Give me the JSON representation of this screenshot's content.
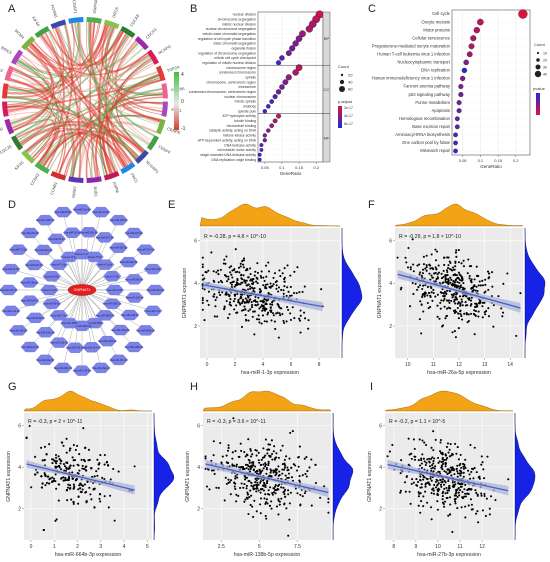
{
  "panel_letters": [
    "A",
    "B",
    "C",
    "D",
    "E",
    "F",
    "G",
    "H",
    "I"
  ],
  "chart_data": [
    {
      "panel": "A",
      "type": "other",
      "subtype": "chord",
      "left_genes": [
        "GNPNAT1",
        "ORC6",
        "CDCA8",
        "CDCA3",
        "NCAPG",
        "TOP2A",
        "KIF20A",
        "KIF11",
        "CENPE",
        "CENPF",
        "NUSAP1",
        "PRC1"
      ],
      "right_genes": [
        "ASPM",
        "BUB1",
        "RRM2",
        "CCNB1",
        "CCNA2",
        "KIF2C",
        "CDC20",
        "NDC80",
        "TTK",
        "CDK1",
        "TPX2",
        "BIRC5",
        "MCM4",
        "KIF4A",
        "FOXM1",
        "RACGAP1"
      ],
      "legend_scale": [
        "4",
        "0",
        "-1"
      ],
      "legend_colors": {
        "high": "#3fbf3f",
        "mid": "#e8e8e8",
        "low": "#d8382b"
      }
    },
    {
      "panel": "B",
      "type": "scatter",
      "subtype": "dotplot",
      "xlabel": "GeneRatio",
      "x_ticks": [
        0.05,
        0.1,
        0.15,
        0.2
      ],
      "xlim": [
        0.03,
        0.22
      ],
      "facets": [
        "BP",
        "CC",
        "MF"
      ],
      "terms": [
        {
          "label": "nuclear division",
          "x": 0.21,
          "facet": "BP",
          "count": 60,
          "p": 0.1
        },
        {
          "label": "chromosome segregation",
          "x": 0.2,
          "facet": "BP",
          "count": 58,
          "p": 0.2
        },
        {
          "label": "mitotic nuclear division",
          "x": 0.19,
          "facet": "BP",
          "count": 55,
          "p": 0.3
        },
        {
          "label": "nuclear chromosome segregation",
          "x": 0.18,
          "facet": "BP",
          "count": 52,
          "p": 0.3
        },
        {
          "label": "mitotic sister chromatid segregation",
          "x": 0.16,
          "facet": "BP",
          "count": 46,
          "p": 0.4
        },
        {
          "label": "regulation of cell cycle phase transition",
          "x": 0.15,
          "facet": "BP",
          "count": 44,
          "p": 0.5
        },
        {
          "label": "sister chromatid segregation",
          "x": 0.14,
          "facet": "BP",
          "count": 40,
          "p": 0.5
        },
        {
          "label": "organelle fission",
          "x": 0.13,
          "facet": "BP",
          "count": 38,
          "p": 0.6
        },
        {
          "label": "regulation of chromosome segregation",
          "x": 0.12,
          "facet": "BP",
          "count": 34,
          "p": 0.6
        },
        {
          "label": "mitotic cell cycle checkpoint",
          "x": 0.1,
          "facet": "BP",
          "count": 30,
          "p": 0.7
        },
        {
          "label": "regulation of mitotic nuclear division",
          "x": 0.09,
          "facet": "BP",
          "count": 26,
          "p": 0.8
        },
        {
          "label": "chromosome region",
          "x": 0.15,
          "facet": "CC",
          "count": 45,
          "p": 0.2
        },
        {
          "label": "condensed chromosome",
          "x": 0.14,
          "facet": "CC",
          "count": 42,
          "p": 0.3
        },
        {
          "label": "spindle",
          "x": 0.12,
          "facet": "CC",
          "count": 38,
          "p": 0.4
        },
        {
          "label": "chromosome, centromeric region",
          "x": 0.11,
          "facet": "CC",
          "count": 34,
          "p": 0.5
        },
        {
          "label": "kinetochore",
          "x": 0.1,
          "facet": "CC",
          "count": 30,
          "p": 0.6
        },
        {
          "label": "condensed chromosome, centromeric region",
          "x": 0.09,
          "facet": "CC",
          "count": 28,
          "p": 0.6
        },
        {
          "label": "nuclear chromosome",
          "x": 0.08,
          "facet": "CC",
          "count": 24,
          "p": 0.7
        },
        {
          "label": "mitotic spindle",
          "x": 0.07,
          "facet": "CC",
          "count": 20,
          "p": 0.8
        },
        {
          "label": "midbody",
          "x": 0.06,
          "facet": "CC",
          "count": 18,
          "p": 0.8
        },
        {
          "label": "spindle pole",
          "x": 0.05,
          "facet": "CC",
          "count": 15,
          "p": 0.9
        },
        {
          "label": "ATP hydrolysis activity",
          "x": 0.09,
          "facet": "MF",
          "count": 25,
          "p": 0.2
        },
        {
          "label": "tubulin binding",
          "x": 0.08,
          "facet": "MF",
          "count": 22,
          "p": 0.3
        },
        {
          "label": "microtubule binding",
          "x": 0.07,
          "facet": "MF",
          "count": 20,
          "p": 0.4
        },
        {
          "label": "catalytic activity, acting on DNA",
          "x": 0.06,
          "facet": "MF",
          "count": 17,
          "p": 0.5
        },
        {
          "label": "histone kinase activity",
          "x": 0.05,
          "facet": "MF",
          "count": 14,
          "p": 0.5
        },
        {
          "label": "ATP-dependent activity, acting on DNA",
          "x": 0.05,
          "facet": "MF",
          "count": 13,
          "p": 0.6
        },
        {
          "label": "DNA helicase activity",
          "x": 0.04,
          "facet": "MF",
          "count": 11,
          "p": 0.7
        },
        {
          "label": "microtubule motor activity",
          "x": 0.04,
          "facet": "MF",
          "count": 10,
          "p": 0.7
        },
        {
          "label": "single-stranded DNA helicase activity",
          "x": 0.035,
          "facet": "MF",
          "count": 9,
          "p": 0.8
        },
        {
          "label": "DNA replication origin binding",
          "x": 0.035,
          "facet": "MF",
          "count": 8,
          "p": 0.9
        }
      ],
      "legend_count_title": "Count",
      "legend_count_values": [
        "20",
        "40",
        "60"
      ],
      "legend_p_title": "p.adjust",
      "legend_p_values": [
        "2e-17",
        "4e-17",
        "6e-17"
      ]
    },
    {
      "panel": "C",
      "type": "scatter",
      "subtype": "dotplot",
      "xlabel": "GeneRatio",
      "x_ticks": [
        0.05,
        0.1,
        0.15,
        0.2
      ],
      "xlim": [
        0.02,
        0.24
      ],
      "terms": [
        {
          "label": "Cell cycle",
          "x": 0.22,
          "count": 40,
          "p": 0.05
        },
        {
          "label": "Oocyte meiosis",
          "x": 0.1,
          "count": 20,
          "p": 0.2
        },
        {
          "label": "Motor proteins",
          "x": 0.09,
          "count": 18,
          "p": 0.25
        },
        {
          "label": "Cellular senescence",
          "x": 0.08,
          "count": 16,
          "p": 0.3
        },
        {
          "label": "Progesterone-mediated oocyte maturation",
          "x": 0.075,
          "count": 15,
          "p": 0.3
        },
        {
          "label": "Human T-cell leukemia virus 1 infection",
          "x": 0.07,
          "count": 14,
          "p": 0.35
        },
        {
          "label": "Nucleocytoplasmic transport",
          "x": 0.06,
          "count": 12,
          "p": 0.5
        },
        {
          "label": "DNA replication",
          "x": 0.055,
          "count": 11,
          "p": 0.9
        },
        {
          "label": "Human immunodeficiency virus 1 infection",
          "x": 0.05,
          "count": 10,
          "p": 0.5
        },
        {
          "label": "Fanconi anemia pathway",
          "x": 0.045,
          "count": 9,
          "p": 0.5
        },
        {
          "label": "p53 signaling pathway",
          "x": 0.045,
          "count": 9,
          "p": 0.6
        },
        {
          "label": "Purine metabolism",
          "x": 0.04,
          "count": 8,
          "p": 0.6
        },
        {
          "label": "Apoptosis",
          "x": 0.04,
          "count": 8,
          "p": 0.65
        },
        {
          "label": "Homologous recombination",
          "x": 0.035,
          "count": 7,
          "p": 0.7
        },
        {
          "label": "Base excision repair",
          "x": 0.035,
          "count": 7,
          "p": 0.7
        },
        {
          "label": "Aminoacyl-tRNA biosynthesis",
          "x": 0.03,
          "count": 6,
          "p": 0.75
        },
        {
          "label": "One carbon pool by folate",
          "x": 0.03,
          "count": 6,
          "p": 0.8
        },
        {
          "label": "Mismatch repair",
          "x": 0.03,
          "count": 6,
          "p": 0.85
        }
      ],
      "legend_count_title": "Count",
      "legend_count_values": [
        "10",
        "20",
        "30",
        "40"
      ],
      "legend_p_title": "pvalue"
    },
    {
      "panel": "D",
      "type": "other",
      "subtype": "network",
      "center": "GNPNAT1",
      "nodes": [
        "hsa-miR-26a-5p",
        "hsa-miR-1-3p",
        "hsa-miR-664b-3p",
        "hsa-miR-138b-5p",
        "hsa-miR-27b-3p",
        "hsa-miR-29a-3p",
        "hsa-miR-145-5p",
        "hsa-miR-200c-3p",
        "hsa-miR-34a-5p",
        "hsa-miR-101-3p",
        "hsa-miR-155-5p",
        "hsa-miR-122-5p",
        "hsa-miR-143-3p",
        "hsa-miR-21-5p",
        "hsa-miR-17-5p",
        "hsa-miR-20a-5p",
        "hsa-miR-106b-5p",
        "hsa-miR-93-5p",
        "hsa-miR-15a-5p",
        "hsa-miR-16-5p",
        "hsa-miR-195-5p",
        "hsa-miR-497-5p",
        "hsa-miR-424-5p",
        "hsa-miR-9-5p",
        "hsa-miR-124-3p",
        "hsa-miR-128-3p",
        "hsa-miR-181a-5p",
        "hsa-miR-199a-5p",
        "hsa-miR-214-3p",
        "hsa-miR-222-3p",
        "hsa-miR-221-3p",
        "hsa-miR-130a-3p",
        "hsa-miR-301a-3p",
        "hsa-miR-454-3p",
        "hsa-miR-19a-3p",
        "hsa-miR-19b-3p",
        "hsa-miR-92a-3p",
        "hsa-miR-25-3p",
        "hsa-miR-32-5p",
        "hsa-miR-363-3p",
        "hsa-miR-367-3p",
        "hsa-miR-503-5p",
        "hsa-miR-322-5p",
        "hsa-miR-590-3p",
        "hsa-miR-4319",
        "hsa-miR-5590-3p",
        "hsa-miR-6838-5p",
        "hsa-miR-3666",
        "hsa-miR-3922-5p",
        "hsa-miR-4500",
        "hsa-miR-7-5p",
        "hsa-miR-98-5p",
        "hsa-let-7a-5p",
        "hsa-let-7b-5p",
        "hsa-let-7c-5p",
        "hsa-let-7d-5p",
        "hsa-let-7e-5p",
        "hsa-let-7f-5p",
        "hsa-let-7g-5p",
        "hsa-let-7i-5p"
      ]
    },
    {
      "panel": "E",
      "type": "scatter",
      "annotation": "R = -0.28, p = 4.8 × 10^-10",
      "xlabel": "hsa-miR-1-3p expression",
      "ylabel": "GNPNAT1 expression",
      "xlim": [
        -0.5,
        9.5
      ],
      "ylim": [
        0.5,
        6.6
      ],
      "x_ticks": [
        0,
        2,
        4,
        6,
        8
      ],
      "y_ticks": [
        2,
        4,
        6
      ],
      "x_center": 3.2,
      "x_sd": 1.8,
      "fit": {
        "slope": -0.12,
        "intercept": 3.9
      },
      "y_sd": 0.75,
      "n_points": 420
    },
    {
      "panel": "F",
      "type": "scatter",
      "annotation": "R = -0.29, p = 1.8 × 10^-10",
      "xlabel": "hsa-miR-26a-5p expression",
      "ylabel": "GNPNAT1 expression",
      "xlim": [
        9.5,
        14.5
      ],
      "ylim": [
        0.5,
        6.6
      ],
      "x_ticks": [
        10,
        11,
        12,
        13,
        14
      ],
      "y_ticks": [
        2,
        4,
        6
      ],
      "x_center": 11.8,
      "x_sd": 0.85,
      "fit": {
        "slope": -0.33,
        "intercept": 7.6
      },
      "y_sd": 0.75,
      "n_points": 420
    },
    {
      "panel": "G",
      "type": "scatter",
      "annotation": "R = -0.3, p = 2 × 10^-11",
      "xlabel": "hsa-miR-664b-3p expression",
      "ylabel": "GNPNAT1 expression",
      "xlim": [
        -0.3,
        5.2
      ],
      "ylim": [
        0.5,
        6.6
      ],
      "x_ticks": [
        0,
        1,
        2,
        3,
        4,
        5
      ],
      "y_ticks": [
        2,
        4,
        6
      ],
      "x_center": 1.8,
      "x_sd": 0.95,
      "fit": {
        "slope": -0.27,
        "intercept": 4.1
      },
      "y_sd": 0.75,
      "n_points": 420
    },
    {
      "panel": "H",
      "type": "scatter",
      "annotation": "R = -0.3, p = 3.6 × 10^-11",
      "xlabel": "hsa-miR-138b-5p expression",
      "ylabel": "GNPNAT1 expression",
      "xlim": [
        1.3,
        9.7
      ],
      "ylim": [
        0.5,
        6.6
      ],
      "x_ticks": [
        2.5,
        5.0,
        7.5
      ],
      "y_ticks": [
        2,
        4,
        6
      ],
      "x_center": 5.2,
      "x_sd": 1.5,
      "fit": {
        "slope": -0.17,
        "intercept": 4.4
      },
      "y_sd": 0.75,
      "n_points": 420
    },
    {
      "panel": "I",
      "type": "scatter",
      "annotation": "R = -0.2, p = 1.1 × 10^-5",
      "xlabel": "hsa-miR-27b-3p expression",
      "ylabel": "GNPNAT1 expression",
      "xlim": [
        7.6,
        13.4
      ],
      "ylim": [
        0.5,
        6.6
      ],
      "x_ticks": [
        8,
        9,
        10,
        11,
        12
      ],
      "y_ticks": [
        2,
        4,
        6
      ],
      "x_center": 10.4,
      "x_sd": 0.95,
      "fit": {
        "slope": -0.23,
        "intercept": 5.9
      },
      "y_sd": 0.75,
      "n_points": 420
    }
  ],
  "colors": {
    "density_top": "#f2a316",
    "density_right": "#1622e6",
    "fit_line": "#4a5fc1",
    "fit_band": "#aab4d8",
    "net_node": "#7b83e8",
    "net_center": "#e31e1e",
    "panel_bg": "#ebebeb"
  }
}
